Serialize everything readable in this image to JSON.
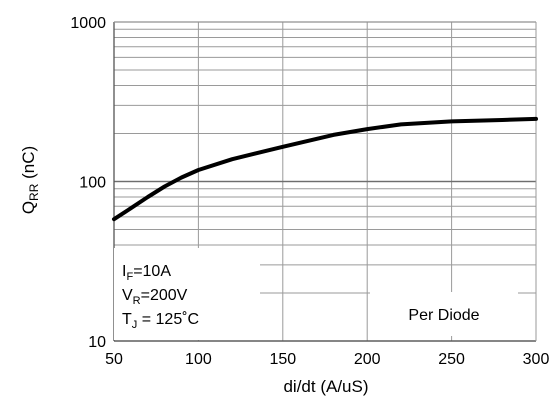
{
  "chart_data": {
    "type": "line",
    "ylabel_main": "Q",
    "ylabel_sub": "RR",
    "ylabel_unit": " (nC)",
    "xlabel": "di/dt (A/uS)",
    "x_ticks": [
      "50",
      "100",
      "150",
      "200",
      "250",
      "300"
    ],
    "y_ticks": [
      "10",
      "100",
      "1000"
    ],
    "xlim": [
      50,
      300
    ],
    "ylim": [
      10,
      1000
    ],
    "y_scale": "log",
    "grid": true,
    "series": [
      {
        "color": "#000000",
        "x": [
          50,
          60,
          70,
          80,
          90,
          100,
          120,
          150,
          180,
          200,
          220,
          250,
          280,
          300
        ],
        "y": [
          58,
          68,
          80,
          93,
          106,
          118,
          138,
          165,
          196,
          213,
          228,
          238,
          243,
          247
        ]
      }
    ],
    "conditions": [
      {
        "main": "I",
        "sub": "F",
        "rest": "=10A"
      },
      {
        "main": "V",
        "sub": "R",
        "rest": "=200V"
      },
      {
        "main": "T",
        "sub": "J",
        "rest": " = 125˚C"
      }
    ],
    "note": "Per Diode"
  }
}
